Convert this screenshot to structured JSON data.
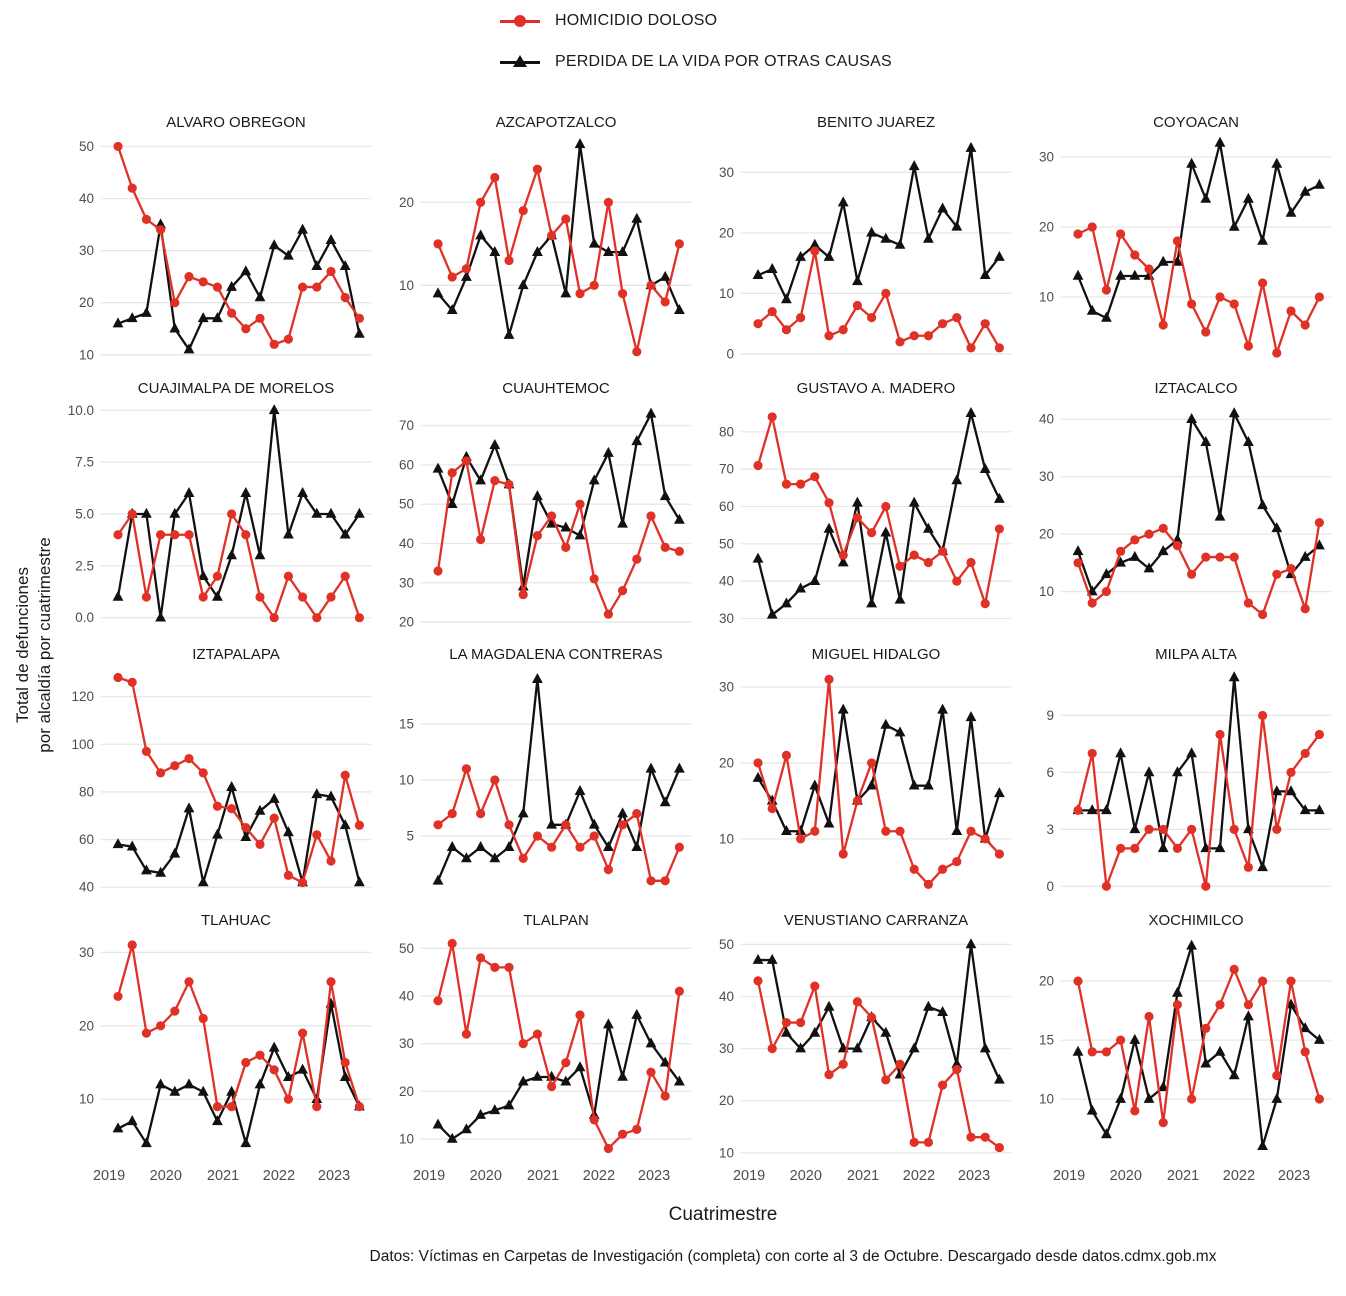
{
  "legend": {
    "items": [
      {
        "label": "HOMICIDIO DOLOSO",
        "color": "#e03127",
        "marker": "circle"
      },
      {
        "label": "PERDIDA DE LA VIDA POR OTRAS CAUSAS",
        "color": "#111111",
        "marker": "triangle"
      }
    ]
  },
  "axes": {
    "x_title": "Cuatrimestre",
    "y_title": "Total de defunciones\npor alcaldía por cuatrimestre",
    "x_tick_labels": [
      "2019",
      "2020",
      "2021",
      "2022",
      "2023"
    ]
  },
  "caption": "Datos: Víctimas en Carpetas de Investigación (completa) con corte al 3 de Octubre. Descargado desde datos.cdmx.gob.mx",
  "chart_data": {
    "type": "line",
    "small_multiples": true,
    "grid_layout": "4x4",
    "x": "18 cuatrimestre periods per facet, early 2019 through late 2023",
    "x_tick_labels": [
      "2019",
      "2020",
      "2021",
      "2022",
      "2023"
    ],
    "xlabel": "Cuatrimestre",
    "ylabel": "Total de defunciones por alcaldía por cuatrimestre",
    "legend_position": "top",
    "grid": "horizontal-major-only",
    "series_meta": [
      {
        "key": "homicidio",
        "name": "HOMICIDIO DOLOSO",
        "color": "#e03127",
        "marker": "circle"
      },
      {
        "key": "otras",
        "name": "PERDIDA DE LA VIDA POR OTRAS CAUSAS",
        "color": "#111111",
        "marker": "triangle"
      }
    ],
    "facets": [
      {
        "title": "ALVARO OBREGON",
        "y_tick_vals": [
          10,
          20,
          30,
          40,
          50
        ],
        "y_tick_labels": [
          "10",
          "20",
          "30",
          "40",
          "50"
        ],
        "ylim": [
          9,
          52
        ],
        "homicidio": [
          50,
          42,
          36,
          34,
          20,
          25,
          24,
          23,
          18,
          15,
          17,
          12,
          13,
          23,
          23,
          26,
          21,
          17
        ],
        "otras": [
          16,
          17,
          18,
          35,
          15,
          11,
          17,
          17,
          23,
          26,
          21,
          31,
          29,
          34,
          27,
          32,
          27,
          14
        ]
      },
      {
        "title": "AZCAPOTZALCO",
        "y_tick_vals": [
          10,
          20
        ],
        "y_tick_labels": [
          "10",
          "20"
        ],
        "ylim": [
          1,
          28
        ],
        "homicidio": [
          15,
          11,
          12,
          20,
          23,
          13,
          19,
          24,
          16,
          18,
          9,
          10,
          20,
          9,
          2,
          10,
          8,
          15
        ],
        "otras": [
          9,
          7,
          11,
          16,
          14,
          4,
          10,
          14,
          16,
          9,
          27,
          15,
          14,
          14,
          18,
          10,
          11,
          7
        ]
      },
      {
        "title": "BENITO JUAREZ",
        "y_tick_vals": [
          0,
          10,
          20,
          30
        ],
        "y_tick_labels": [
          "0",
          "10",
          "20",
          "30"
        ],
        "ylim": [
          -1,
          36
        ],
        "homicidio": [
          5,
          7,
          4,
          6,
          17,
          3,
          4,
          8,
          6,
          10,
          2,
          3,
          3,
          5,
          6,
          1,
          5,
          1
        ],
        "otras": [
          13,
          14,
          9,
          16,
          18,
          16,
          25,
          12,
          20,
          19,
          18,
          31,
          19,
          24,
          21,
          34,
          13,
          16
        ]
      },
      {
        "title": "COYOACAN",
        "y_tick_vals": [
          10,
          20,
          30
        ],
        "y_tick_labels": [
          "10",
          "20",
          "30"
        ],
        "ylim": [
          1,
          33
        ],
        "homicidio": [
          19,
          20,
          11,
          19,
          16,
          14,
          6,
          18,
          9,
          5,
          10,
          9,
          3,
          12,
          2,
          8,
          6,
          10
        ],
        "otras": [
          13,
          8,
          7,
          13,
          13,
          13,
          15,
          15,
          29,
          24,
          32,
          20,
          24,
          18,
          29,
          22,
          25,
          26
        ]
      },
      {
        "title": "CUAJIMALPA DE MORELOS",
        "y_tick_vals": [
          0,
          2.5,
          5,
          7.5,
          10
        ],
        "y_tick_labels": [
          "0.0",
          "2.5",
          "5.0",
          "7.5",
          "10.0"
        ],
        "ylim": [
          -0.4,
          10.4
        ],
        "homicidio": [
          4,
          5,
          1,
          4,
          4,
          4,
          1,
          2,
          5,
          4,
          1,
          0,
          2,
          1,
          0,
          1,
          2,
          0
        ],
        "otras": [
          1,
          5,
          5,
          0,
          5,
          6,
          2,
          1,
          3,
          6,
          3,
          10,
          4,
          6,
          5,
          5,
          4,
          5
        ]
      },
      {
        "title": "CUAUHTEMOC",
        "y_tick_vals": [
          20,
          30,
          40,
          50,
          60,
          70
        ],
        "y_tick_labels": [
          "20",
          "30",
          "40",
          "50",
          "60",
          "70"
        ],
        "ylim": [
          19,
          76
        ],
        "homicidio": [
          33,
          58,
          61,
          41,
          56,
          55,
          27,
          42,
          47,
          39,
          50,
          31,
          22,
          28,
          36,
          47,
          39,
          38
        ],
        "otras": [
          59,
          50,
          62,
          56,
          65,
          55,
          29,
          52,
          45,
          44,
          42,
          56,
          63,
          45,
          66,
          73,
          52,
          46
        ]
      },
      {
        "title": "GUSTAVO A. MADERO",
        "y_tick_vals": [
          30,
          40,
          50,
          60,
          70,
          80
        ],
        "y_tick_labels": [
          "30",
          "40",
          "50",
          "60",
          "70",
          "80"
        ],
        "ylim": [
          28,
          88
        ],
        "homicidio": [
          71,
          84,
          66,
          66,
          68,
          61,
          47,
          57,
          53,
          60,
          44,
          47,
          45,
          48,
          40,
          45,
          34,
          54
        ],
        "otras": [
          46,
          31,
          34,
          38,
          40,
          54,
          45,
          61,
          34,
          53,
          35,
          61,
          54,
          48,
          67,
          85,
          70,
          62
        ]
      },
      {
        "title": "IZTACALCO",
        "y_tick_vals": [
          10,
          20,
          30,
          40
        ],
        "y_tick_labels": [
          "10",
          "20",
          "30",
          "40"
        ],
        "ylim": [
          4,
          43
        ],
        "homicidio": [
          15,
          8,
          10,
          17,
          19,
          20,
          21,
          18,
          13,
          16,
          16,
          16,
          8,
          6,
          13,
          14,
          7,
          22
        ],
        "otras": [
          17,
          10,
          13,
          15,
          16,
          14,
          17,
          19,
          40,
          36,
          23,
          41,
          36,
          25,
          21,
          13,
          16,
          18
        ]
      },
      {
        "title": "IZTAPALAPA",
        "y_tick_vals": [
          40,
          60,
          80,
          100,
          120
        ],
        "y_tick_labels": [
          "40",
          "60",
          "80",
          "100",
          "120"
        ],
        "ylim": [
          38,
          132
        ],
        "homicidio": [
          128,
          126,
          97,
          88,
          91,
          94,
          88,
          74,
          73,
          65,
          58,
          69,
          45,
          42,
          62,
          51,
          87,
          66
        ],
        "otras": [
          58,
          57,
          47,
          46,
          54,
          73,
          42,
          62,
          82,
          61,
          72,
          77,
          63,
          42,
          79,
          78,
          66,
          42
        ]
      },
      {
        "title": "LA MAGDALENA CONTRERAS",
        "y_tick_vals": [
          5,
          10,
          15
        ],
        "y_tick_labels": [
          "5",
          "10",
          "15"
        ],
        "ylim": [
          0,
          20
        ],
        "homicidio": [
          6,
          7,
          11,
          7,
          10,
          6,
          3,
          5,
          4,
          6,
          4,
          5,
          2,
          6,
          7,
          1,
          1,
          4
        ],
        "otras": [
          1,
          4,
          3,
          4,
          3,
          4,
          7,
          19,
          6,
          6,
          9,
          6,
          4,
          7,
          4,
          11,
          8,
          11
        ]
      },
      {
        "title": "MIGUEL HIDALGO",
        "y_tick_vals": [
          10,
          20,
          30
        ],
        "y_tick_labels": [
          "10",
          "20",
          "30"
        ],
        "ylim": [
          3,
          32.5
        ],
        "homicidio": [
          20,
          14,
          21,
          10,
          11,
          31,
          8,
          15,
          20,
          11,
          11,
          6,
          4,
          6,
          7,
          11,
          10,
          8
        ],
        "otras": [
          18,
          15,
          11,
          11,
          17,
          12,
          27,
          15,
          17,
          25,
          24,
          17,
          17,
          27,
          11,
          26,
          10,
          16
        ]
      },
      {
        "title": "MILPA ALTA",
        "y_tick_vals": [
          0,
          3,
          6,
          9
        ],
        "y_tick_labels": [
          "0",
          "3",
          "6",
          "9"
        ],
        "ylim": [
          -0.3,
          11.5
        ],
        "homicidio": [
          4,
          7,
          0,
          2,
          2,
          3,
          3,
          2,
          3,
          0,
          8,
          3,
          1,
          9,
          3,
          6,
          7,
          8
        ],
        "otras": [
          4,
          4,
          4,
          7,
          3,
          6,
          2,
          6,
          7,
          2,
          2,
          11,
          3,
          1,
          5,
          5,
          4,
          4
        ]
      },
      {
        "title": "TLAHUAC",
        "y_tick_vals": [
          10,
          20,
          30
        ],
        "y_tick_labels": [
          "10",
          "20",
          "30"
        ],
        "ylim": [
          2,
          32.5
        ],
        "homicidio": [
          24,
          31,
          19,
          20,
          22,
          26,
          21,
          9,
          9,
          15,
          16,
          14,
          10,
          19,
          9,
          26,
          15,
          9
        ],
        "otras": [
          6,
          7,
          4,
          12,
          11,
          12,
          11,
          7,
          11,
          4,
          12,
          17,
          13,
          14,
          10,
          23,
          13,
          9
        ]
      },
      {
        "title": "TLALPAN",
        "y_tick_vals": [
          10,
          20,
          30,
          40,
          50
        ],
        "y_tick_labels": [
          "10",
          "20",
          "30",
          "40",
          "50"
        ],
        "ylim": [
          6,
          53
        ],
        "homicidio": [
          39,
          51,
          32,
          48,
          46,
          46,
          30,
          32,
          21,
          26,
          36,
          14,
          8,
          11,
          12,
          24,
          19,
          41
        ],
        "otras": [
          13,
          10,
          12,
          15,
          16,
          17,
          22,
          23,
          23,
          22,
          25,
          15,
          34,
          23,
          36,
          30,
          26,
          22
        ]
      },
      {
        "title": "VENUSTIANO CARRANZA",
        "y_tick_vals": [
          10,
          20,
          30,
          40,
          50
        ],
        "y_tick_labels": [
          "10",
          "20",
          "30",
          "40",
          "50"
        ],
        "ylim": [
          9,
          52
        ],
        "homicidio": [
          43,
          30,
          35,
          35,
          42,
          25,
          27,
          39,
          36,
          24,
          27,
          12,
          12,
          23,
          26,
          13,
          13,
          11
        ],
        "otras": [
          47,
          47,
          33,
          30,
          33,
          38,
          30,
          30,
          36,
          33,
          25,
          30,
          38,
          37,
          27,
          50,
          30,
          24
        ]
      },
      {
        "title": "XOCHIMILCO",
        "y_tick_vals": [
          10,
          15,
          20
        ],
        "y_tick_labels": [
          "10",
          "15",
          "20"
        ],
        "ylim": [
          5,
          24
        ],
        "homicidio": [
          20,
          14,
          14,
          15,
          9,
          17,
          8,
          18,
          10,
          16,
          18,
          21,
          18,
          20,
          12,
          20,
          14,
          10
        ],
        "otras": [
          14,
          9,
          7,
          10,
          15,
          10,
          11,
          19,
          23,
          13,
          14,
          12,
          17,
          6,
          10,
          18,
          16,
          15
        ]
      }
    ]
  }
}
